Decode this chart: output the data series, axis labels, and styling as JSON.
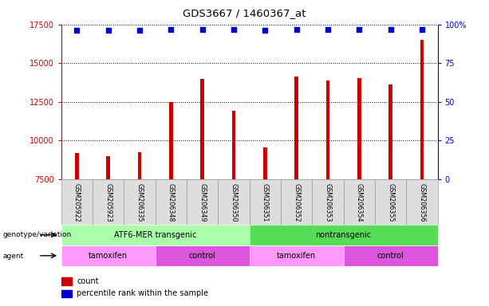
{
  "title": "GDS3667 / 1460367_at",
  "samples": [
    "GSM205922",
    "GSM205923",
    "GSM206335",
    "GSM206348",
    "GSM206349",
    "GSM206350",
    "GSM206351",
    "GSM206352",
    "GSM206353",
    "GSM206354",
    "GSM206355",
    "GSM206356"
  ],
  "counts": [
    9200,
    9000,
    9250,
    12500,
    14000,
    11900,
    9550,
    14150,
    13900,
    14050,
    13600,
    16500
  ],
  "percentile_ranks": [
    96,
    96,
    96,
    97,
    97,
    97,
    96,
    97,
    97,
    97,
    97,
    97
  ],
  "ylim_left": [
    7500,
    17500
  ],
  "ylim_right": [
    0,
    100
  ],
  "bar_color": "#cc0000",
  "dot_color": "#0000cc",
  "bg_color": "#ffffff",
  "left_axis_color": "#cc0000",
  "right_axis_color": "#0000cc",
  "left_ticks": [
    7500,
    10000,
    12500,
    15000,
    17500
  ],
  "right_ticks": [
    0,
    25,
    50,
    75,
    100
  ],
  "right_tick_labels": [
    "0",
    "25",
    "50",
    "75",
    "100%"
  ],
  "genotype_groups": [
    {
      "label": "ATF6-MER transgenic",
      "start": 0,
      "end": 6,
      "color": "#aaffaa"
    },
    {
      "label": "nontransgenic",
      "start": 6,
      "end": 12,
      "color": "#55dd55"
    }
  ],
  "agent_groups": [
    {
      "label": "tamoxifen",
      "start": 0,
      "end": 3,
      "color": "#ff99ff"
    },
    {
      "label": "control",
      "start": 3,
      "end": 6,
      "color": "#dd55dd"
    },
    {
      "label": "tamoxifen",
      "start": 6,
      "end": 9,
      "color": "#ff99ff"
    },
    {
      "label": "control",
      "start": 9,
      "end": 12,
      "color": "#dd55dd"
    }
  ]
}
